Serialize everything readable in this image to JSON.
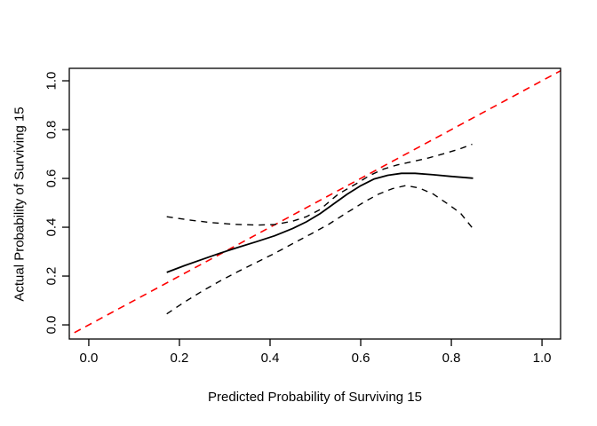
{
  "figure": {
    "background": "#ffffff",
    "axis_color": "#000000",
    "text_color": "#000000"
  },
  "chart_data": {
    "type": "line",
    "title": "",
    "xlabel": "Predicted Probability of Surviving 15",
    "ylabel": "Actual Probability of Surviving 15",
    "xlim": [
      -0.043,
      1.041
    ],
    "ylim": [
      -0.058,
      1.051
    ],
    "xticks": [
      0.0,
      0.2,
      0.4,
      0.6,
      0.8,
      1.0
    ],
    "xtick_labels": [
      "0.0",
      "0.2",
      "0.4",
      "0.6",
      "0.8",
      "1.0"
    ],
    "yticks": [
      0.0,
      0.2,
      0.4,
      0.6,
      0.8,
      1.0
    ],
    "ytick_labels": [
      "0.0",
      "0.2",
      "0.4",
      "0.6",
      "0.8",
      "1.0"
    ],
    "grid": false,
    "legend": "none",
    "series": [
      {
        "name": "ideal-line",
        "color": "#ff0000",
        "width": 1.6,
        "dash": "8,6",
        "points": [
          [
            -0.08,
            -0.08
          ],
          [
            1.08,
            1.08
          ]
        ]
      },
      {
        "name": "calibration-curve",
        "color": "#000000",
        "width": 1.8,
        "dash": null,
        "points": [
          [
            0.172,
            0.215
          ],
          [
            0.21,
            0.242
          ],
          [
            0.25,
            0.268
          ],
          [
            0.29,
            0.294
          ],
          [
            0.33,
            0.318
          ],
          [
            0.37,
            0.341
          ],
          [
            0.41,
            0.365
          ],
          [
            0.45,
            0.395
          ],
          [
            0.48,
            0.422
          ],
          [
            0.51,
            0.455
          ],
          [
            0.54,
            0.495
          ],
          [
            0.57,
            0.535
          ],
          [
            0.6,
            0.57
          ],
          [
            0.63,
            0.598
          ],
          [
            0.66,
            0.613
          ],
          [
            0.69,
            0.621
          ],
          [
            0.72,
            0.621
          ],
          [
            0.76,
            0.615
          ],
          [
            0.8,
            0.608
          ],
          [
            0.848,
            0.601
          ]
        ]
      },
      {
        "name": "upper-confidence-band",
        "color": "#000000",
        "width": 1.4,
        "dash": "7,6",
        "points": [
          [
            0.172,
            0.443
          ],
          [
            0.22,
            0.43
          ],
          [
            0.27,
            0.419
          ],
          [
            0.32,
            0.412
          ],
          [
            0.37,
            0.409
          ],
          [
            0.41,
            0.411
          ],
          [
            0.45,
            0.425
          ],
          [
            0.48,
            0.443
          ],
          [
            0.51,
            0.472
          ],
          [
            0.55,
            0.535
          ],
          [
            0.59,
            0.578
          ],
          [
            0.62,
            0.612
          ],
          [
            0.65,
            0.638
          ],
          [
            0.68,
            0.655
          ],
          [
            0.71,
            0.667
          ],
          [
            0.75,
            0.684
          ],
          [
            0.79,
            0.705
          ],
          [
            0.82,
            0.722
          ],
          [
            0.846,
            0.74
          ]
        ]
      },
      {
        "name": "lower-confidence-band",
        "color": "#000000",
        "width": 1.4,
        "dash": "7,6",
        "points": [
          [
            0.172,
            0.045
          ],
          [
            0.21,
            0.092
          ],
          [
            0.25,
            0.138
          ],
          [
            0.29,
            0.18
          ],
          [
            0.33,
            0.219
          ],
          [
            0.37,
            0.256
          ],
          [
            0.41,
            0.293
          ],
          [
            0.45,
            0.333
          ],
          [
            0.49,
            0.372
          ],
          [
            0.53,
            0.413
          ],
          [
            0.57,
            0.46
          ],
          [
            0.61,
            0.506
          ],
          [
            0.64,
            0.536
          ],
          [
            0.67,
            0.558
          ],
          [
            0.7,
            0.571
          ],
          [
            0.73,
            0.56
          ],
          [
            0.76,
            0.536
          ],
          [
            0.79,
            0.498
          ],
          [
            0.82,
            0.458
          ],
          [
            0.846,
            0.398
          ]
        ]
      }
    ]
  }
}
